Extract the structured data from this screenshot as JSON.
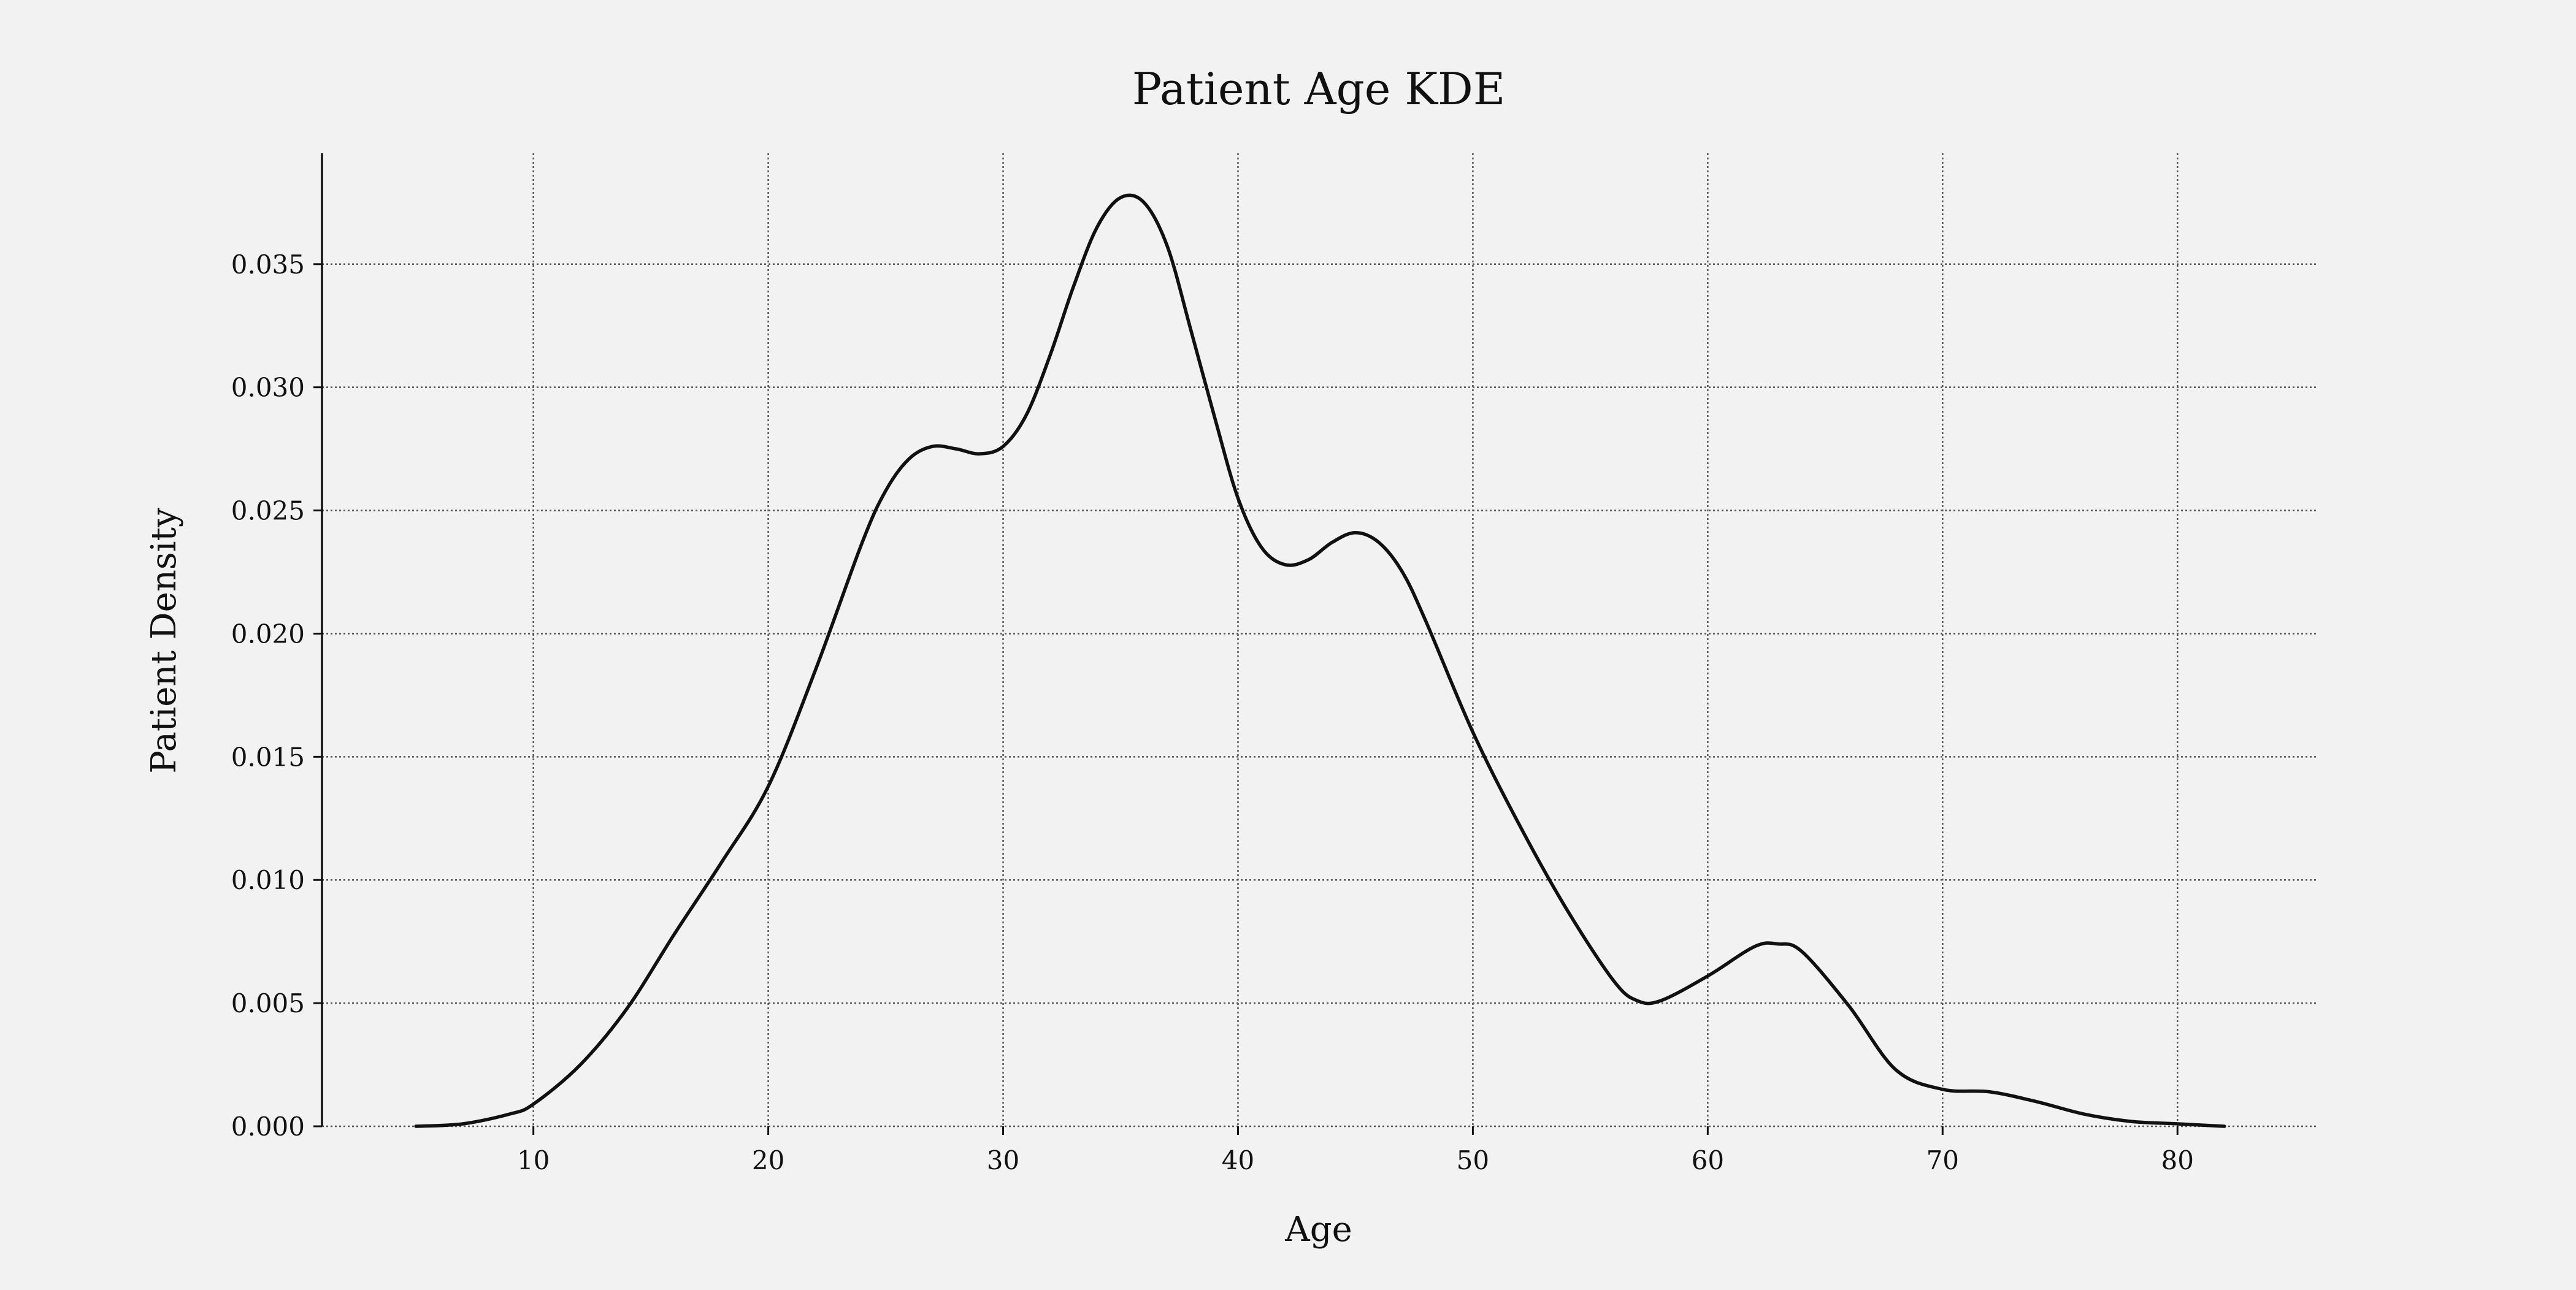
{
  "colors": {
    "background": "#f2f2f2",
    "line": "#111111",
    "grid": "#555555",
    "axis": "#111111"
  },
  "chart_data": {
    "type": "line",
    "title": "Patient Age KDE",
    "xlabel": "Age",
    "ylabel": "Patient Density",
    "xlim": [
      1,
      86
    ],
    "ylim": [
      0,
      0.0395
    ],
    "xticks": [
      10,
      20,
      30,
      40,
      50,
      60,
      70,
      80
    ],
    "xtick_labels": [
      "10",
      "20",
      "30",
      "40",
      "50",
      "60",
      "70",
      "80"
    ],
    "yticks": [
      0,
      0.005,
      0.01,
      0.015,
      0.02,
      0.025,
      0.03,
      0.035
    ],
    "ytick_labels": [
      "0.000",
      "0.005",
      "0.010",
      "0.015",
      "0.020",
      "0.025",
      "0.030",
      "0.035"
    ],
    "grid": "on, dotted, both axes",
    "legend": "none",
    "series": [
      {
        "x": [
          5,
          7,
          9,
          10,
          12,
          14,
          16,
          18,
          20,
          22,
          24,
          25,
          26,
          27,
          28,
          29,
          30,
          31,
          32,
          33,
          34,
          35,
          36,
          37,
          38,
          39,
          40,
          41,
          42,
          43,
          44,
          45,
          46,
          47,
          48,
          50,
          52,
          54,
          56,
          57,
          58,
          60,
          62,
          63,
          64,
          66,
          68,
          70,
          72,
          74,
          76,
          78,
          80,
          82
        ],
        "y": [
          0.0,
          0.0001,
          0.0005,
          0.0009,
          0.0025,
          0.0048,
          0.0078,
          0.0107,
          0.0138,
          0.0185,
          0.0237,
          0.0258,
          0.0271,
          0.0276,
          0.0275,
          0.0273,
          0.0276,
          0.0289,
          0.0313,
          0.0341,
          0.0365,
          0.0377,
          0.0375,
          0.0357,
          0.0323,
          0.0288,
          0.0255,
          0.0235,
          0.0228,
          0.023,
          0.0237,
          0.0241,
          0.0237,
          0.0225,
          0.0205,
          0.016,
          0.0122,
          0.0088,
          0.0059,
          0.0051,
          0.0051,
          0.0061,
          0.0073,
          0.0074,
          0.0071,
          0.0049,
          0.0023,
          0.0015,
          0.0014,
          0.001,
          0.0005,
          0.0002,
          0.0001,
          0.0
        ]
      }
    ]
  }
}
